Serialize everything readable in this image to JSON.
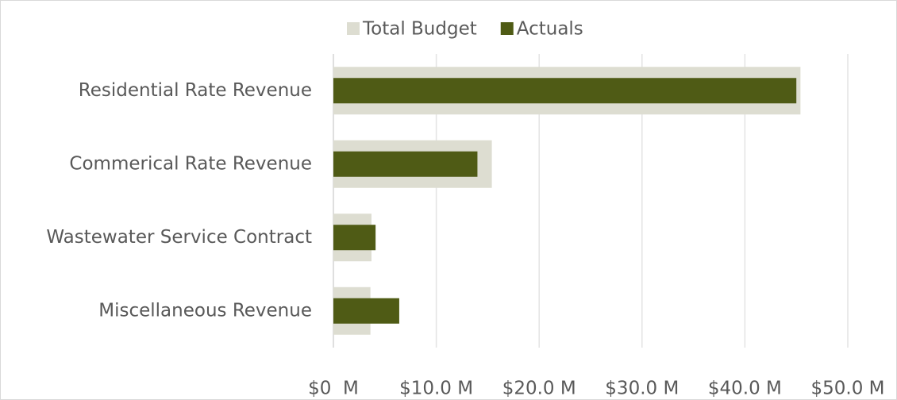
{
  "chart_data": {
    "type": "bar",
    "orientation": "horizontal",
    "categories": [
      "Residential Rate Revenue",
      "Commerical Rate Revenue",
      "Wastewater Service Contract",
      "Miscellaneous Revenue"
    ],
    "series": [
      {
        "name": "Total Budget",
        "color": "#ddddd1",
        "values": [
          45.4,
          15.4,
          3.7,
          3.6
        ]
      },
      {
        "name": "Actuals",
        "color": "#4f5b15",
        "values": [
          45.0,
          14.0,
          4.1,
          6.4
        ]
      }
    ],
    "xlim": [
      0,
      50
    ],
    "xticks": [
      {
        "value": 0,
        "label": "$0  M"
      },
      {
        "value": 10,
        "label": "$10.0 M"
      },
      {
        "value": 20,
        "label": "$20.0 M"
      },
      {
        "value": 30,
        "label": "$30.0 M"
      },
      {
        "value": 40,
        "label": "$40.0 M"
      },
      {
        "value": 50,
        "label": "$50.0 M"
      }
    ],
    "grid": true,
    "legend": "top"
  }
}
